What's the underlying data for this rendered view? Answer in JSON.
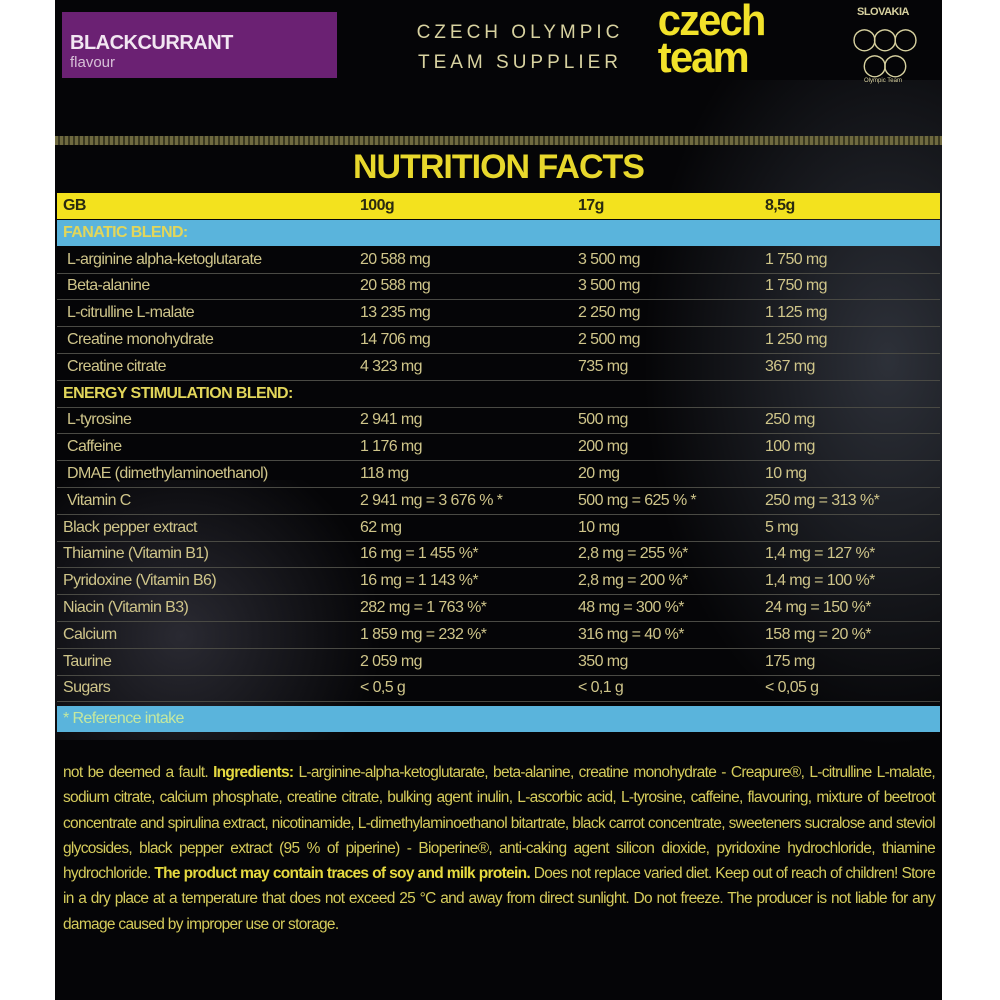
{
  "flavour": {
    "name": "BLACKCURRANT",
    "sub": "flavour"
  },
  "supplier": {
    "line1": "CZECH OLYMPIC",
    "line2": "TEAM SUPPLIER"
  },
  "logo": {
    "line1": "czech",
    "line2": "team"
  },
  "olympic_logo": {
    "country": "SLOVAKIA",
    "subtitle": "Olympic Team"
  },
  "title": "NUTRITION FACTS",
  "header": [
    "GB",
    "100g",
    "17g",
    "8,5g"
  ],
  "section1": "FANATIC BLEND:",
  "rows1": [
    [
      "L-arginine alpha-ketoglutarate",
      "20 588 mg",
      "3 500 mg",
      "1 750 mg"
    ],
    [
      "Beta-alanine",
      "20 588 mg",
      "3 500 mg",
      "1 750 mg"
    ],
    [
      "L-citrulline L-malate",
      "13 235 mg",
      "2 250 mg",
      "1 125 mg"
    ],
    [
      "Creatine monohydrate",
      "14 706 mg",
      "2 500 mg",
      "1 250 mg"
    ],
    [
      "Creatine citrate",
      "4 323 mg",
      "735 mg",
      "367 mg"
    ]
  ],
  "section2": "ENERGY STIMULATION BLEND:",
  "rows2": [
    [
      "L-tyrosine",
      "2 941 mg",
      "500 mg",
      "250 mg"
    ],
    [
      "Caffeine",
      "1 176 mg",
      "200 mg",
      "100 mg"
    ],
    [
      "DMAE (dimethylaminoethanol)",
      "118 mg",
      "20 mg",
      "10 mg"
    ],
    [
      "Vitamin C",
      "2 941 mg = 3 676 % *",
      "500 mg = 625 % *",
      "250 mg = 313 %*"
    ]
  ],
  "rows3": [
    [
      "Black pepper extract",
      "62 mg",
      "10 mg",
      "5 mg"
    ],
    [
      "Thiamine (Vitamin B1)",
      "16 mg = 1 455 %*",
      "2,8 mg = 255 %*",
      "1,4 mg = 127 %*"
    ],
    [
      "Pyridoxine (Vitamin B6)",
      "16 mg = 1 143 %*",
      "2,8 mg = 200 %*",
      "1,4 mg = 100 %*"
    ],
    [
      "Niacin (Vitamin B3)",
      "282 mg = 1 763 %*",
      "48 mg = 300 %*",
      "24 mg = 150 %*"
    ],
    [
      "Calcium",
      "1 859 mg = 232 %*",
      "316 mg = 40 %*",
      "158 mg = 20 %*"
    ],
    [
      "Taurine",
      "2 059 mg",
      "350 mg",
      "175 mg"
    ],
    [
      "Sugars",
      "< 0,5 g",
      "< 0,1 g",
      "< 0,05 g"
    ]
  ],
  "footnote": "* Reference intake",
  "ingredients": {
    "lead": "not be deemed a fault. ",
    "label": "Ingredients:",
    "text": " L-arginine-alpha-ketoglutarate, beta-alanine, creatine monohydrate - Creapure®, L-citrulline L-malate, sodium citrate, calcium phosphate, creatine citrate, bulking agent inulin, L-ascorbic acid, L-tyrosine, caffeine, flavouring, mixture of beetroot concentrate and spirulina extract, nicotinamide, L-dimethylaminoethanol bitartrate, black carrot concentrate, sweeteners sucralose and steviol glycosides, black pepper extract (95 % of piperine) - Bioperine®, anti-caking agent silicon dioxide, pyridoxine hydrochloride, thiamine hydrochloride. ",
    "allergen": "The product may contain traces of soy and milk protein.",
    "tail": " Does not replace varied diet. Keep out of reach of children! Store in a dry place at a temperature that does not exceed 25 °C and away from direct sunlight. Do not freeze. The producer is not liable for any damage caused by improper use or storage."
  }
}
